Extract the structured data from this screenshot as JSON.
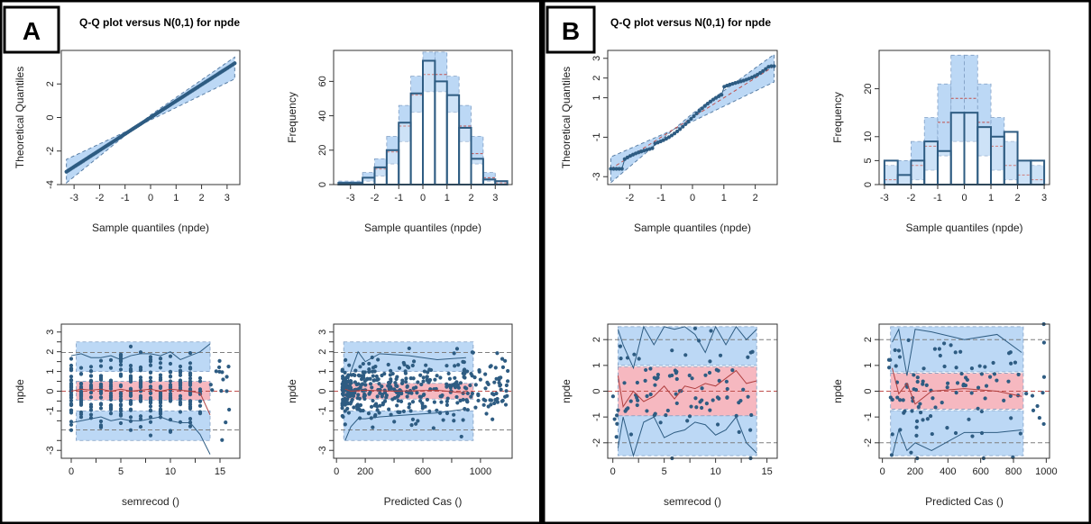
{
  "panels": [
    {
      "letter": "A",
      "title": "Q-Q plot versus N(0,1) for  npde"
    },
    {
      "letter": "B",
      "title": "Q-Q plot versus N(0,1) for  npde"
    }
  ],
  "colors": {
    "band_blue": "#bcd8f5",
    "band_pink": "#f6b8c0",
    "points": "#2e5c82",
    "lines": "#2e5c82",
    "ref_dashed": "#7f7f7f",
    "red_dashed": "#c0504d",
    "frame": "#000000"
  },
  "chart_data": [
    {
      "panel": "A",
      "type": "scatter",
      "subtype": "qq",
      "title": "Q-Q plot versus N(0,1) for  npde",
      "xlabel": "Sample quantiles (npde)",
      "ylabel": "Theoretical Quantiles",
      "xlim": [
        -3.5,
        3.5
      ],
      "ylim": [
        -4,
        4
      ],
      "xticks": [
        -3,
        -2,
        -1,
        0,
        1,
        2,
        3
      ],
      "yticks": [
        -4,
        -2,
        0,
        2
      ],
      "points_range": [
        -3.3,
        3.3
      ],
      "pi_band": [
        [
          -3.3,
          -2.5,
          -3.9
        ],
        [
          0,
          -0.15,
          0.15
        ],
        [
          3.3,
          2.3,
          3.6
        ]
      ],
      "reference_line": [
        [
          -3.3,
          -3.3
        ],
        [
          3.3,
          3.3
        ]
      ]
    },
    {
      "panel": "A",
      "type": "bar",
      "subtype": "histogram",
      "xlabel": "Sample quantiles (npde)",
      "ylabel": "Frequency",
      "xlim": [
        -3.7,
        3.7
      ],
      "ylim": [
        0,
        78
      ],
      "xticks": [
        -3,
        -2,
        -1,
        0,
        1,
        2,
        3
      ],
      "yticks": [
        0,
        20,
        40,
        60
      ],
      "bin_edges": [
        -3.5,
        -3,
        -2.5,
        -2,
        -1.5,
        -1,
        -0.5,
        0,
        0.5,
        1,
        1.5,
        2,
        2.5,
        3,
        3.5
      ],
      "counts": [
        1,
        1,
        4,
        10,
        20,
        36,
        53,
        72,
        60,
        52,
        33,
        15,
        3,
        2
      ],
      "pi_lower": [
        0,
        0,
        2,
        5,
        12,
        25,
        42,
        54,
        54,
        42,
        25,
        12,
        2,
        0
      ],
      "pi_upper": [
        2,
        2,
        7,
        15,
        28,
        46,
        63,
        77,
        77,
        63,
        46,
        28,
        7,
        2
      ],
      "pi_median": [
        1,
        1,
        4,
        9,
        19,
        34,
        52,
        64,
        64,
        52,
        34,
        18,
        4,
        1
      ]
    },
    {
      "panel": "A",
      "type": "scatter",
      "subtype": "vpc",
      "xlabel": "semrecod ()",
      "ylabel": "npde",
      "xlim": [
        -1,
        17
      ],
      "ylim": [
        -3.4,
        3.4
      ],
      "xticks": [
        0,
        5,
        10,
        15
      ],
      "xminor": [
        2.5,
        7.5,
        12.5
      ],
      "yticks": [
        -3,
        -1,
        0,
        1,
        2,
        3
      ],
      "yhalf": [
        -2.5,
        -1.5,
        -0.5,
        0.5,
        1.5,
        2.5
      ],
      "ref_h_dashed": [
        -1.96,
        0,
        1.96
      ],
      "x": [
        0,
        1,
        2,
        3,
        4,
        5,
        6,
        7,
        8,
        9,
        10,
        11,
        12,
        13,
        14
      ],
      "outer_upper_band": [
        [
          2.5,
          1.0
        ],
        [
          2.5,
          1.4
        ],
        [
          2.5,
          1.5
        ],
        [
          2.5,
          1.5
        ],
        [
          2.5,
          1.5
        ],
        [
          2.5,
          1.5
        ],
        [
          2.5,
          1.5
        ],
        [
          2.5,
          1.5
        ],
        [
          2.5,
          1.5
        ],
        [
          2.5,
          1.5
        ],
        [
          2.5,
          1.5
        ],
        [
          2.5,
          1.5
        ],
        [
          2.5,
          1.5
        ],
        [
          2.5,
          1.0
        ],
        [
          2.4,
          0.9
        ]
      ],
      "median_band": [
        0.5,
        -0.45
      ],
      "outer_lower_band": [
        -1.0,
        -2.5
      ],
      "obs_upper": [
        1.8,
        1.9,
        1.7,
        1.7,
        1.8,
        1.6,
        1.8,
        1.9,
        1.9,
        1.8,
        2.0,
        1.6,
        1.8,
        2.0,
        2.4
      ],
      "obs_median": [
        0.0,
        0.1,
        0.05,
        0.1,
        0.0,
        0.1,
        0.0,
        0.05,
        0.1,
        0.0,
        0.1,
        0.05,
        0.0,
        -0.1,
        -1.2
      ],
      "obs_lower": [
        -1.6,
        -1.5,
        -1.4,
        -1.3,
        -1.5,
        -1.4,
        -1.5,
        -1.5,
        -1.4,
        -1.3,
        -1.5,
        -1.6,
        -1.6,
        -2.2,
        -3.2
      ]
    },
    {
      "panel": "A",
      "type": "scatter",
      "subtype": "vpc",
      "xlabel": "Predicted Cas ()",
      "ylabel": "npde",
      "xlim": [
        -20,
        1220
      ],
      "ylim": [
        -3.4,
        3.4
      ],
      "xticks": [
        0,
        200,
        600,
        1000
      ],
      "xminor": [
        400,
        800
      ],
      "yticks": [
        -3,
        -1,
        0,
        1,
        2,
        3
      ],
      "yhalf": [
        -2.5,
        -1.5,
        -0.5,
        0.5,
        1.5,
        2.5
      ],
      "ref_h_dashed": [
        -1.96,
        0,
        1.96
      ],
      "band_x": [
        50,
        950
      ],
      "outer_upper_band": [
        2.5,
        1.0
      ],
      "median_band": [
        0.4,
        -0.4
      ],
      "outer_lower_band": [
        -1.0,
        -2.5
      ],
      "obs_upper_x": [
        60,
        100,
        150,
        200,
        300,
        500,
        700,
        900
      ],
      "obs_upper": [
        0.0,
        1.0,
        2.0,
        1.5,
        1.9,
        1.8,
        1.6,
        1.7
      ],
      "obs_median_x": [
        60,
        100,
        200,
        400,
        700,
        900
      ],
      "obs_median": [
        0.1,
        0.0,
        0.05,
        0.0,
        0.05,
        -0.1
      ],
      "obs_lower_x": [
        60,
        100,
        150,
        200,
        300,
        500,
        700,
        900
      ],
      "obs_lower": [
        -2.5,
        -1.8,
        -1.4,
        -1.4,
        -1.3,
        -1.2,
        -1.1,
        -0.9
      ]
    },
    {
      "panel": "B",
      "type": "scatter",
      "subtype": "qq",
      "title": "Q-Q plot versus N(0,1) for  npde",
      "xlabel": "Sample quantiles (npde)",
      "ylabel": "Theoretical Quantiles",
      "xlim": [
        -2.7,
        2.7
      ],
      "ylim": [
        -3.4,
        3.4
      ],
      "xticks": [
        -2,
        -1,
        0,
        1,
        2
      ],
      "yticks": [
        -3,
        -1,
        1,
        2,
        3
      ],
      "points_range": [
        -2.6,
        2.6
      ],
      "pi_band": [
        [
          -2.6,
          -2.0,
          -3.3
        ],
        [
          0,
          -0.2,
          0.2
        ],
        [
          2.6,
          1.8,
          3.2
        ]
      ],
      "reference_line": [
        [
          -2.6,
          -2.6
        ],
        [
          2.6,
          2.6
        ]
      ]
    },
    {
      "panel": "B",
      "type": "bar",
      "subtype": "histogram",
      "xlabel": "Sample quantiles (npde)",
      "ylabel": "Frequency",
      "xlim": [
        -3.2,
        3.2
      ],
      "ylim": [
        0,
        28
      ],
      "xticks": [
        -3,
        -2,
        -1,
        0,
        1,
        2,
        3
      ],
      "yticks": [
        0,
        5,
        10,
        20
      ],
      "bin_edges": [
        -3,
        -2.5,
        -2,
        -1.5,
        -1,
        -0.5,
        0,
        0.5,
        1,
        1.5,
        2,
        2.5,
        3
      ],
      "counts": [
        5,
        2,
        5,
        9,
        7,
        15,
        15,
        12,
        10,
        11,
        5,
        5
      ],
      "pi_lower": [
        0,
        0,
        1,
        3,
        6,
        9,
        9,
        6,
        3,
        1,
        0,
        0
      ],
      "pi_upper": [
        4,
        5,
        9,
        14,
        21,
        27,
        27,
        21,
        14,
        9,
        5,
        4
      ],
      "pi_median": [
        1,
        2,
        4,
        8,
        13,
        18,
        18,
        13,
        8,
        4,
        2,
        1
      ]
    },
    {
      "panel": "B",
      "type": "scatter",
      "subtype": "vpc",
      "xlabel": "semrecod ()",
      "ylabel": "npde",
      "xlim": [
        -0.5,
        16
      ],
      "ylim": [
        -2.6,
        2.6
      ],
      "xticks": [
        0,
        5,
        10,
        15
      ],
      "xminor": [
        2.5,
        7.5,
        12.5
      ],
      "yticks": [
        -2,
        -1,
        0,
        1,
        2
      ],
      "ref_h_dashed": [
        -2,
        0,
        2
      ],
      "band_x": [
        0.5,
        14
      ],
      "outer_upper_band": [
        2.5,
        1.0
      ],
      "median_band": [
        0.95,
        -0.95
      ],
      "outer_lower_band": [
        -0.95,
        -2.5
      ],
      "x": [
        0.5,
        1,
        2,
        3,
        4,
        5,
        6,
        7,
        8,
        9,
        10,
        11,
        12,
        13,
        14
      ],
      "obs_upper": [
        2.4,
        1.8,
        0.9,
        2.5,
        1.8,
        2.5,
        2.4,
        2.5,
        2.2,
        1.5,
        2.5,
        1.8,
        2.5,
        2.0,
        2.4
      ],
      "obs_median": [
        0.6,
        -0.6,
        0.0,
        -0.4,
        -0.2,
        0.2,
        -0.3,
        0.2,
        0.1,
        0.3,
        0.2,
        0.5,
        0.8,
        0.3,
        0.4
      ],
      "obs_lower": [
        -2.2,
        -1.0,
        -2.5,
        -1.2,
        -1.0,
        -1.8,
        -1.6,
        -1.5,
        -1.2,
        -1.3,
        -1.7,
        -1.5,
        -1.0,
        -2.0,
        -2.4
      ]
    },
    {
      "panel": "B",
      "type": "scatter",
      "subtype": "vpc",
      "xlabel": "Predicted Cas ()",
      "ylabel": "npde",
      "xlim": [
        -20,
        1020
      ],
      "ylim": [
        -2.6,
        2.6
      ],
      "xticks": [
        0,
        200,
        400,
        600,
        800,
        1000
      ],
      "yticks": [
        -2,
        -1,
        0,
        1,
        2
      ],
      "ref_h_dashed": [
        -2,
        0,
        2
      ],
      "band_x": [
        50,
        860
      ],
      "outer_upper_band": [
        2.5,
        0.75
      ],
      "median_band": [
        0.7,
        -0.7
      ],
      "outer_lower_band": [
        -0.75,
        -2.5
      ],
      "obs_upper_x": [
        60,
        100,
        150,
        200,
        300,
        500,
        700,
        850
      ],
      "obs_upper": [
        1.9,
        2.4,
        0.6,
        2.4,
        2.3,
        2.0,
        2.2,
        1.5
      ],
      "obs_median_x": [
        60,
        100,
        150,
        200,
        300,
        500,
        700,
        850
      ],
      "obs_median": [
        0.9,
        -0.1,
        0.3,
        -0.5,
        0.0,
        0.1,
        0.0,
        -0.2
      ],
      "obs_lower_x": [
        60,
        100,
        150,
        200,
        300,
        500,
        700,
        850
      ],
      "obs_lower": [
        -2.5,
        -1.5,
        -2.3,
        -2.0,
        -2.3,
        -1.6,
        -1.6,
        -1.5
      ]
    }
  ]
}
